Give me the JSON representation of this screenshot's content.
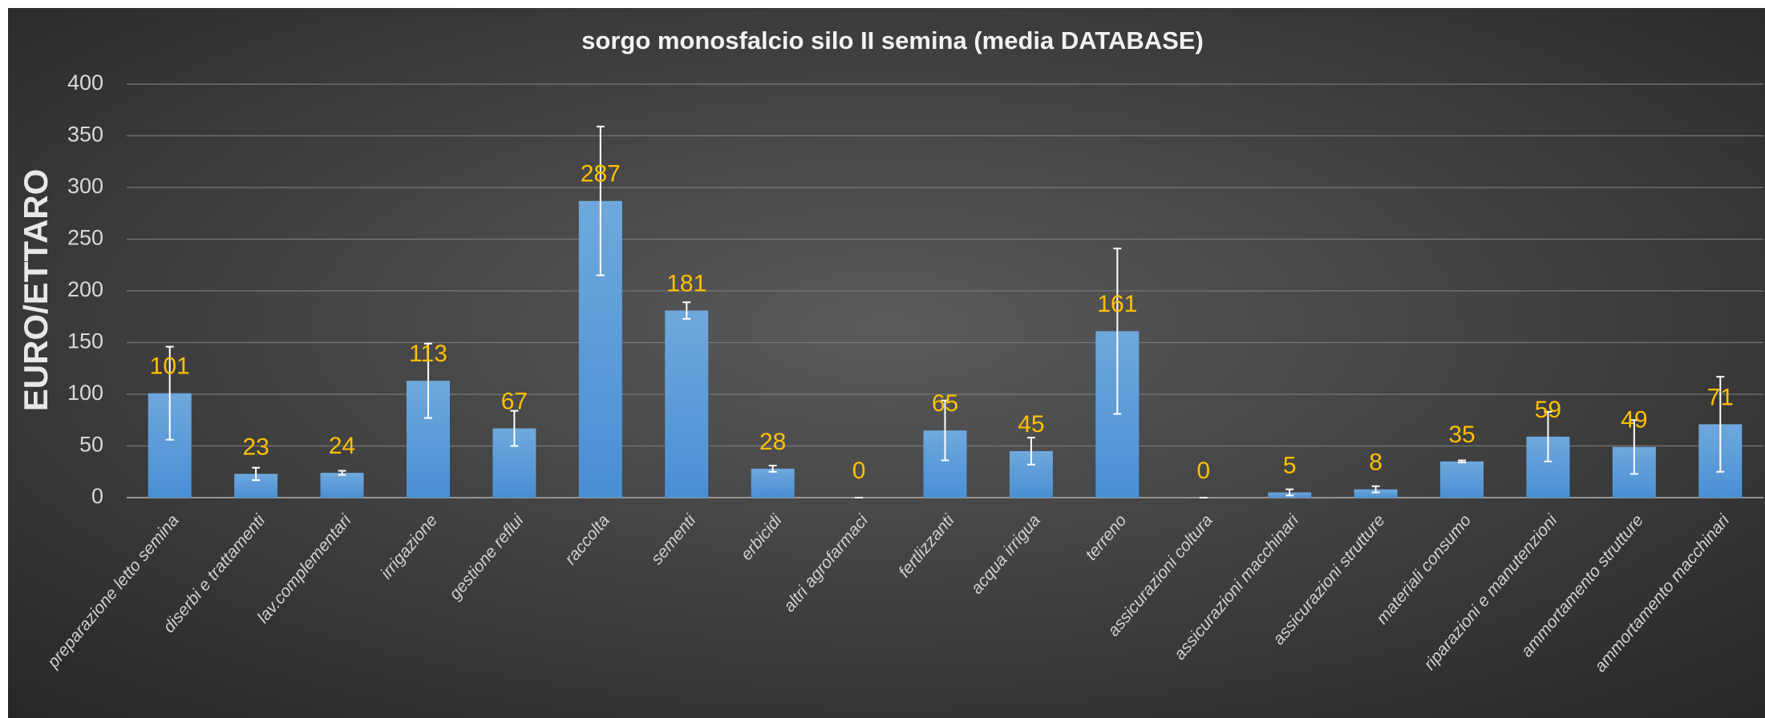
{
  "chart_data": {
    "type": "bar",
    "title": "sorgo monosfalcio silo II semina (media DATABASE)",
    "y_label": "EURO/ETTARO",
    "categories": [
      "preparazione letto semina",
      "diserbi e trattamenti",
      "lav.complementari",
      "irrigazione",
      "gestione reflui",
      "raccolta",
      "sementi",
      "erbicidi",
      "altri agrofarmaci",
      "fertlizzanti",
      "acqua irrigua",
      "terreno",
      "assicurazioni coltura",
      "assicurazioni macchinari",
      "assicurazioni strutture",
      "materiali consumo",
      "riparazioni e manutenzioni",
      "ammortamento strutture",
      "ammortamento macchinari"
    ],
    "values": [
      101,
      23,
      24,
      113,
      67,
      287,
      181,
      28,
      0,
      65,
      45,
      161,
      0,
      5,
      8,
      35,
      59,
      49,
      71
    ],
    "errors": [
      45,
      6,
      2,
      36,
      17,
      72,
      8,
      3,
      0,
      29,
      13,
      80,
      0,
      3,
      3,
      1,
      24,
      26,
      46
    ],
    "color": "#5b9bd5",
    "ylim": [
      0,
      400
    ],
    "yticks": [
      0,
      50,
      100,
      150,
      200,
      250,
      300,
      350,
      400
    ],
    "grid": true
  }
}
